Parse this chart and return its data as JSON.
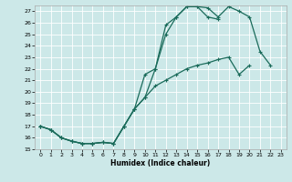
{
  "xlabel": "Humidex (Indice chaleur)",
  "bg_color": "#cce8e8",
  "grid_color": "#ffffff",
  "line_color": "#1a6b5a",
  "xlim": [
    -0.5,
    23.5
  ],
  "ylim": [
    15,
    27.5
  ],
  "xticks": [
    0,
    1,
    2,
    3,
    4,
    5,
    6,
    7,
    8,
    9,
    10,
    11,
    12,
    13,
    14,
    15,
    16,
    17,
    18,
    19,
    20,
    21,
    22,
    23
  ],
  "yticks": [
    15,
    16,
    17,
    18,
    19,
    20,
    21,
    22,
    23,
    24,
    25,
    26,
    27
  ],
  "line1_x": [
    0,
    1,
    2,
    3,
    4,
    5,
    6,
    7,
    8,
    9,
    10,
    11,
    12,
    13,
    14,
    15,
    16,
    17,
    18,
    19,
    20,
    21,
    22,
    23
  ],
  "line1_y": [
    17.0,
    16.7,
    16.0,
    15.7,
    15.5,
    15.5,
    15.6,
    15.5,
    17.0,
    18.5,
    21.5,
    22.0,
    25.8,
    26.5,
    27.4,
    27.4,
    27.3,
    26.5,
    27.4,
    27.0,
    26.5,
    23.5,
    22.3,
    null
  ],
  "line2_x": [
    0,
    1,
    2,
    3,
    4,
    5,
    6,
    7,
    8,
    9,
    10,
    11,
    12,
    13,
    14,
    15,
    16,
    17
  ],
  "line2_y": [
    17.0,
    16.7,
    16.0,
    15.7,
    15.5,
    15.5,
    15.6,
    15.5,
    17.0,
    18.5,
    19.5,
    22.0,
    25.0,
    26.5,
    27.4,
    27.4,
    26.5,
    26.3
  ],
  "line3_x": [
    0,
    1,
    2,
    3,
    4,
    5,
    6,
    7,
    8,
    9,
    10,
    11,
    12,
    13,
    14,
    15,
    16,
    17,
    18,
    19,
    20,
    21,
    22,
    23
  ],
  "line3_y": [
    17.0,
    16.7,
    16.0,
    15.7,
    15.5,
    15.5,
    15.6,
    15.5,
    17.0,
    18.5,
    19.5,
    20.5,
    21.0,
    21.5,
    22.0,
    22.3,
    22.5,
    22.8,
    23.0,
    21.5,
    22.3,
    null,
    null,
    null
  ]
}
